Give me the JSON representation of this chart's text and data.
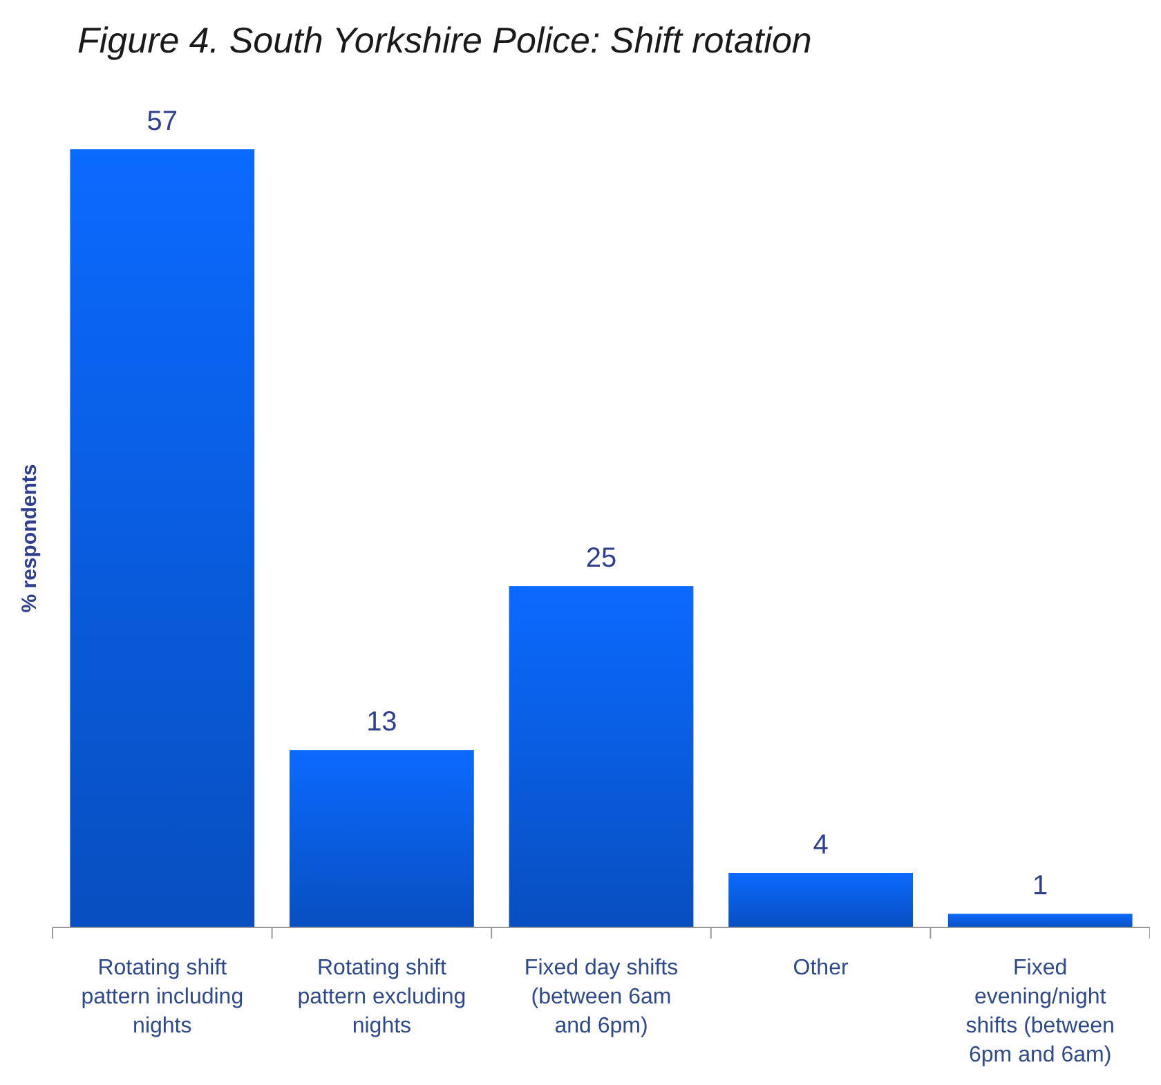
{
  "chart_data": {
    "type": "bar",
    "title": "Figure 4. South Yorkshire Police: Shift rotation",
    "ylabel": "% respondents",
    "categories": [
      "Rotating shift pattern including nights",
      "Rotating shift pattern excluding nights",
      "Fixed day shifts (between 6am and 6pm)",
      "Other",
      "Fixed evening/night shifts (between 6pm and 6am)"
    ],
    "values": [
      57,
      13,
      25,
      4,
      1
    ],
    "color": "#0a5fe6",
    "data_labels": true
  }
}
